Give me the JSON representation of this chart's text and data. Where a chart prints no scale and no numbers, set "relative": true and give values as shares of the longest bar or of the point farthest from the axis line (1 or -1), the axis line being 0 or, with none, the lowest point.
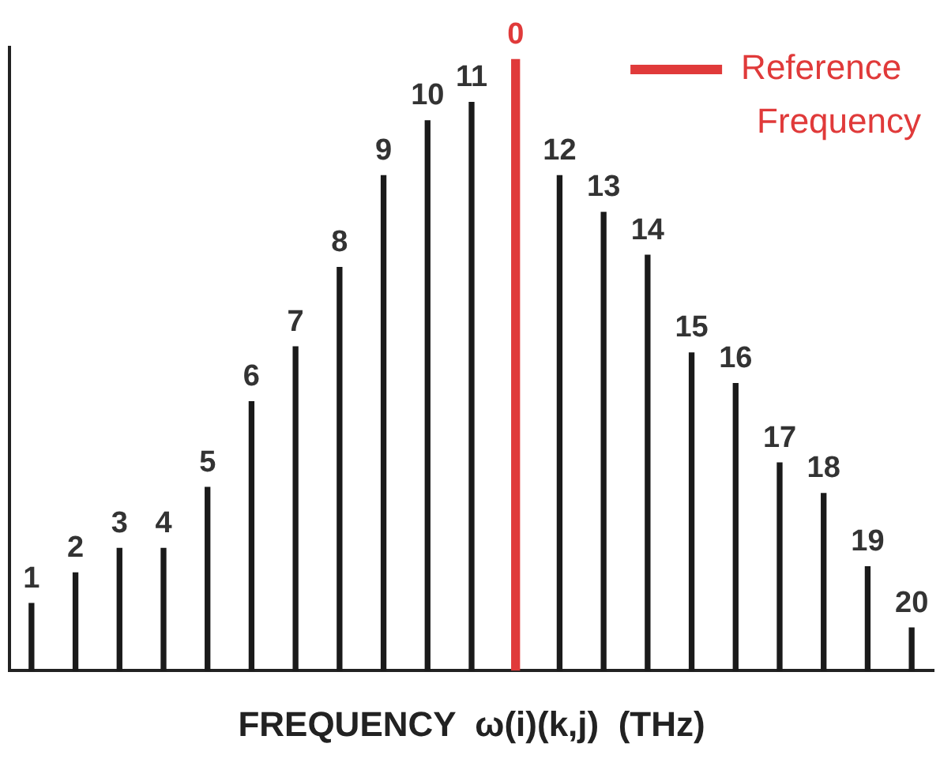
{
  "chart_data": {
    "type": "bar",
    "relative": true,
    "xlabel": "FREQUENCY  ω(i)(k,j)  (THz)",
    "legend": "top right",
    "categories": [
      "1",
      "2",
      "3",
      "4",
      "5",
      "6",
      "7",
      "8",
      "9",
      "10",
      "11",
      "0",
      "12",
      "13",
      "14",
      "15",
      "16",
      "17",
      "18",
      "19",
      "20"
    ],
    "series": [
      {
        "color": "#1a1a1a",
        "values": [
          0.11,
          0.16,
          0.2,
          0.2,
          0.3,
          0.44,
          0.53,
          0.66,
          0.81,
          0.9,
          0.93,
          null,
          0.81,
          0.75,
          0.68,
          0.52,
          0.47,
          0.34,
          0.29,
          0.17,
          0.07
        ]
      },
      {
        "name": "Reference Frequency",
        "color": "#e03a3a",
        "values": [
          null,
          null,
          null,
          null,
          null,
          null,
          null,
          null,
          null,
          null,
          null,
          1,
          null,
          null,
          null,
          null,
          null,
          null,
          null,
          null,
          null
        ]
      }
    ]
  }
}
